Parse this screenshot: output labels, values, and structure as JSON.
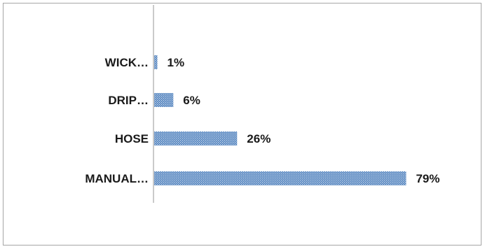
{
  "chart_data": {
    "type": "bar",
    "orientation": "horizontal",
    "categories": [
      "WICK…",
      "DRIP…",
      "HOSE",
      "MANUAL…"
    ],
    "values": [
      1,
      6,
      26,
      79
    ],
    "value_labels": [
      "1%",
      "6%",
      "26%",
      "79%"
    ],
    "unit": "%",
    "xlim": [
      0,
      100
    ],
    "grid": false,
    "legend": "none",
    "colors": {
      "bar_fill": "#4f81bd",
      "bar_dots": "#dce6f2",
      "axis": "#a6a6a6",
      "frame": "#a6a6a6"
    }
  }
}
